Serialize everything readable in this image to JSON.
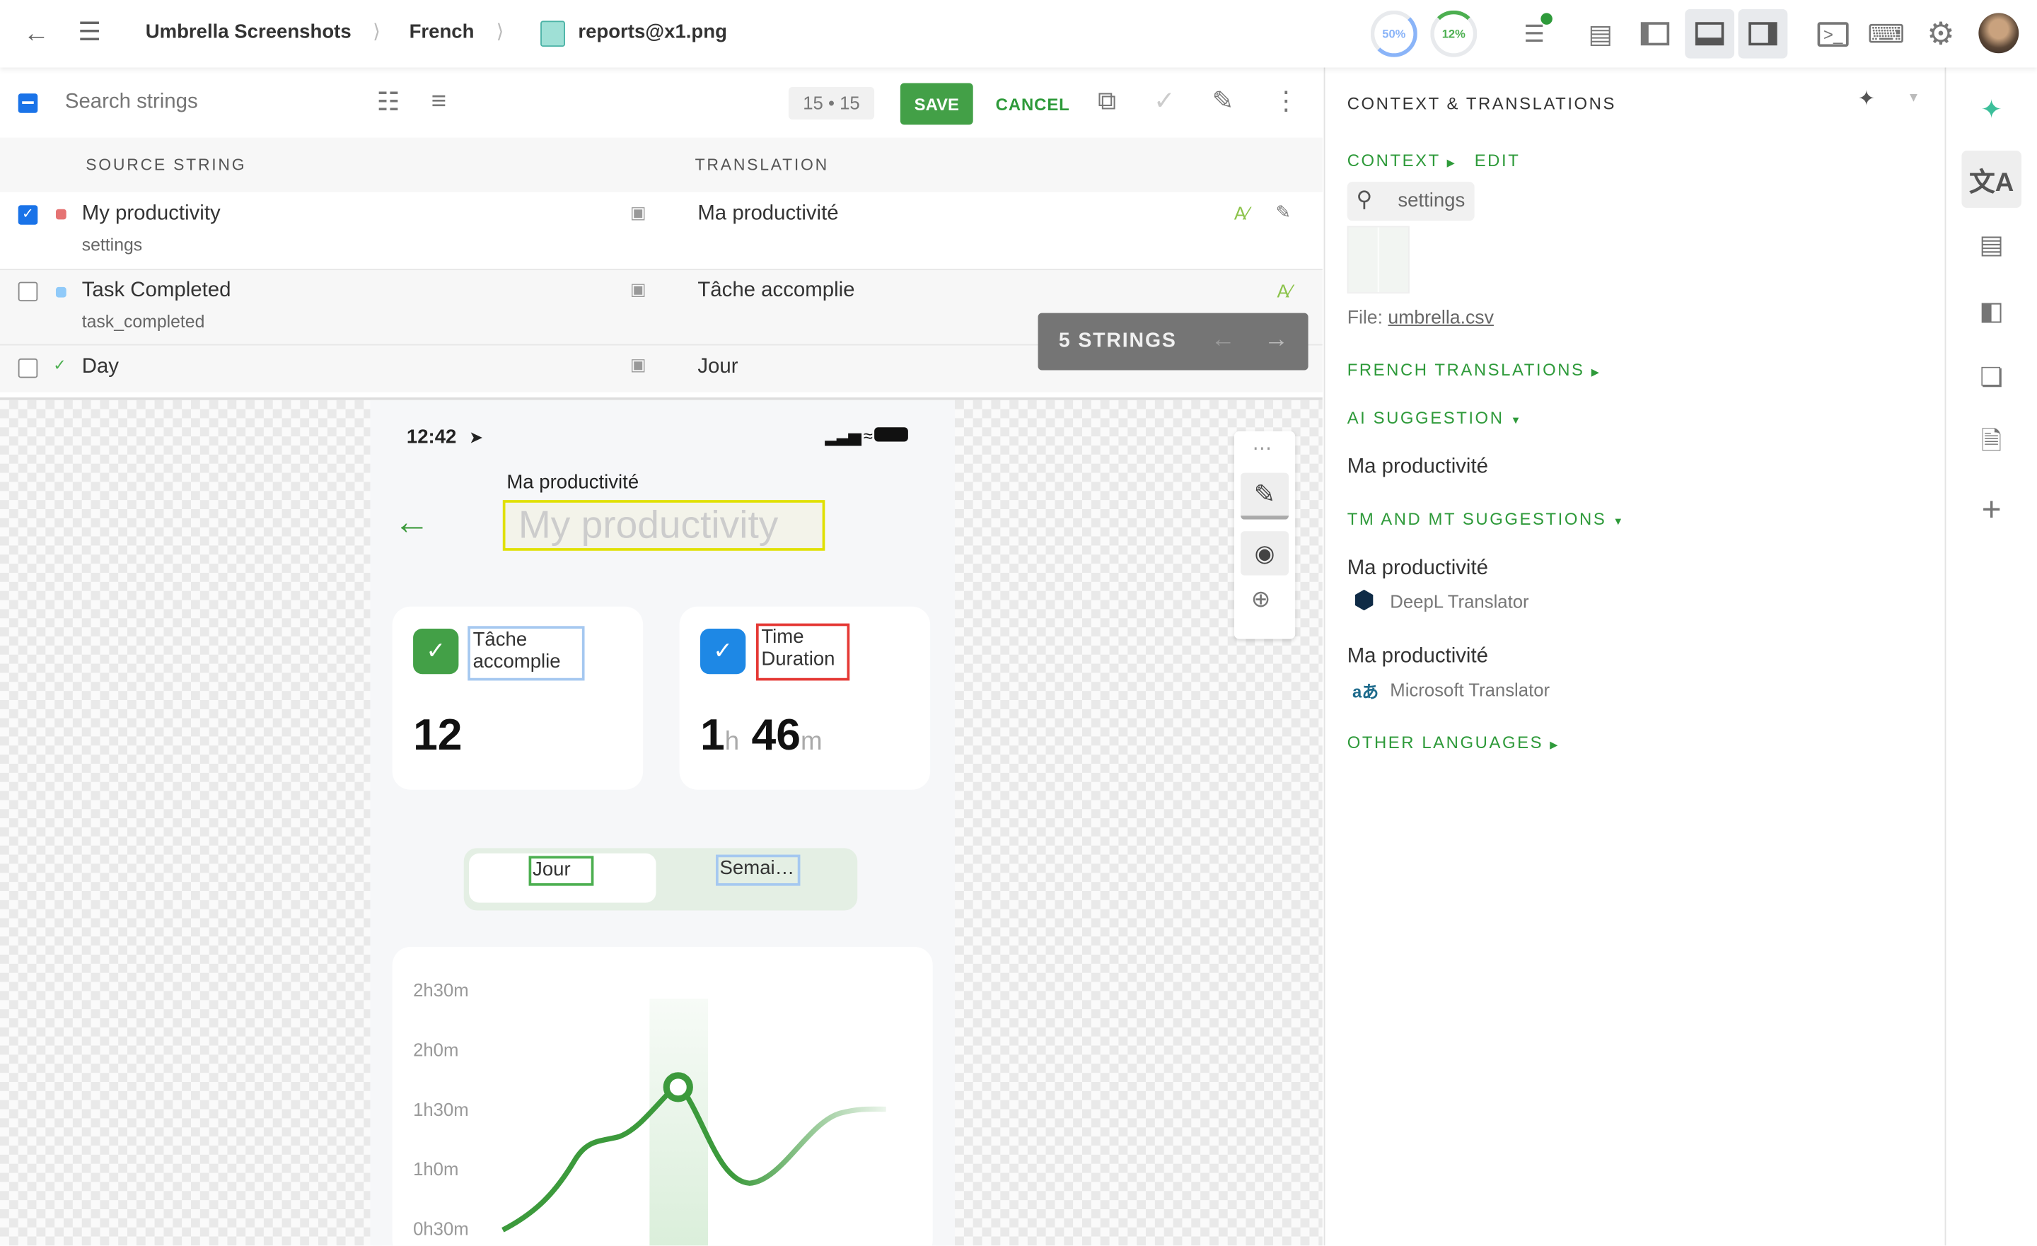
{
  "topbar": {
    "breadcrumb": [
      "Umbrella Screenshots",
      "French",
      "reports@x1.png"
    ],
    "progress": [
      {
        "label": "50%",
        "value": 50,
        "color": "#8ab4f8"
      },
      {
        "label": "12%",
        "value": 12,
        "color": "#4caf50"
      }
    ],
    "icons": [
      "back-arrow-icon",
      "menu-icon",
      "image-file-icon",
      "edit-list-icon",
      "table-view-icon",
      "left-panel-icon",
      "bottom-panel-icon",
      "right-panel-icon",
      "terminal-icon",
      "keyboard-icon",
      "gear-icon",
      "avatar"
    ]
  },
  "toolbar": {
    "search_placeholder": "Search strings",
    "counter": "15 • 15",
    "save": "SAVE",
    "cancel": "CANCEL"
  },
  "table": {
    "headers": {
      "source": "SOURCE STRING",
      "translation": "TRANSLATION"
    },
    "rows": [
      {
        "source": "My productivity",
        "key": "settings",
        "translation": "Ma productivité",
        "checked": true,
        "status_color": "#e57373"
      },
      {
        "source": "Task Completed",
        "key": "task_completed",
        "translation": "Tâche accomplie",
        "checked": false,
        "status_color": "#90caf9"
      },
      {
        "source": "Day",
        "key": "",
        "translation": "Jour",
        "checked": false,
        "status_color": "#4caf50"
      }
    ]
  },
  "toast": {
    "label": "5 STRINGS"
  },
  "phone": {
    "time": "12:42",
    "title_translation": "Ma productivité",
    "title_source": "My productivity",
    "card1": {
      "label": "Tâche accomplie",
      "value": "12"
    },
    "card2": {
      "label_line1": "Time",
      "label_line2": "Duration",
      "hours": "1",
      "h": "h",
      "minutes": "46",
      "m": "m"
    },
    "tabs": {
      "day": "Jour",
      "week": "Semai…"
    },
    "yticks": [
      "2h30m",
      "2h0m",
      "1h30m",
      "1h0m",
      "0h30m"
    ]
  },
  "right": {
    "title": "CONTEXT & TRANSLATIONS",
    "context": "CONTEXT",
    "edit": "EDIT",
    "key": "settings",
    "file_label": "File:",
    "file_name": "umbrella.csv",
    "french_translations": "FRENCH TRANSLATIONS",
    "ai_suggestion": "AI SUGGESTION",
    "ai_text": "Ma productivité",
    "tm_mt": "TM AND MT SUGGESTIONS",
    "suggestions": [
      {
        "text": "Ma productivité",
        "provider": "DeepL Translator"
      },
      {
        "text": "Ma productivité",
        "provider": "Microsoft Translator"
      }
    ],
    "other_languages": "OTHER LANGUAGES"
  },
  "colors": {
    "accent": "#2e9a3a",
    "save_bg": "#43a047",
    "select_blue": "#1a73e8"
  }
}
